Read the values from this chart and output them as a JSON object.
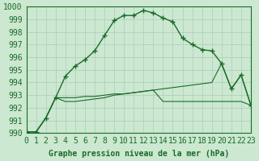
{
  "title": "Graphe pression niveau de la mer (hPa)",
  "background_color": "#cce8d0",
  "grid_color": "#aaccbb",
  "line_color": "#1a6b2a",
  "xlim": [
    0,
    23
  ],
  "ylim": [
    990,
    1000
  ],
  "xticks": [
    0,
    1,
    2,
    3,
    4,
    5,
    6,
    7,
    8,
    9,
    10,
    11,
    12,
    13,
    14,
    15,
    16,
    17,
    18,
    19,
    20,
    21,
    22,
    23
  ],
  "yticks": [
    990,
    991,
    992,
    993,
    994,
    995,
    996,
    997,
    998,
    999,
    1000
  ],
  "series1_x": [
    0,
    1,
    2,
    3,
    4,
    5,
    6,
    7,
    8,
    9,
    10,
    11,
    12,
    13,
    14,
    15,
    16,
    17,
    18,
    19,
    20,
    21,
    22,
    23
  ],
  "series1_y": [
    990.1,
    990.1,
    991.2,
    992.8,
    994.5,
    995.3,
    995.8,
    996.5,
    997.7,
    998.9,
    999.3,
    999.3,
    999.7,
    999.5,
    999.1,
    998.8,
    997.5,
    997.0,
    996.6,
    996.5,
    995.5,
    993.5,
    994.6,
    992.2
  ],
  "series2_x": [
    0,
    1,
    2,
    3,
    4,
    5,
    6,
    7,
    8,
    9,
    10,
    11,
    12,
    13,
    14,
    15,
    16,
    17,
    18,
    19,
    20,
    21,
    22,
    23
  ],
  "series2_y": [
    990.1,
    990.1,
    991.2,
    992.8,
    992.8,
    992.8,
    992.9,
    992.9,
    993.0,
    993.1,
    993.1,
    993.2,
    993.3,
    993.4,
    992.5,
    992.5,
    992.5,
    992.5,
    992.5,
    992.5,
    992.5,
    992.5,
    992.5,
    992.2
  ],
  "series3_x": [
    0,
    1,
    2,
    3,
    4,
    5,
    6,
    7,
    8,
    9,
    10,
    11,
    12,
    13,
    14,
    15,
    16,
    17,
    18,
    19,
    20,
    21,
    22,
    23
  ],
  "series3_y": [
    990.1,
    990.1,
    991.2,
    992.8,
    992.5,
    992.5,
    992.6,
    992.7,
    992.8,
    993.0,
    993.1,
    993.2,
    993.3,
    993.4,
    993.5,
    993.6,
    993.7,
    993.8,
    993.9,
    994.0,
    995.5,
    993.5,
    994.6,
    992.2
  ],
  "font_color": "#1a6b2a",
  "font_size": 7,
  "title_fontsize": 7
}
